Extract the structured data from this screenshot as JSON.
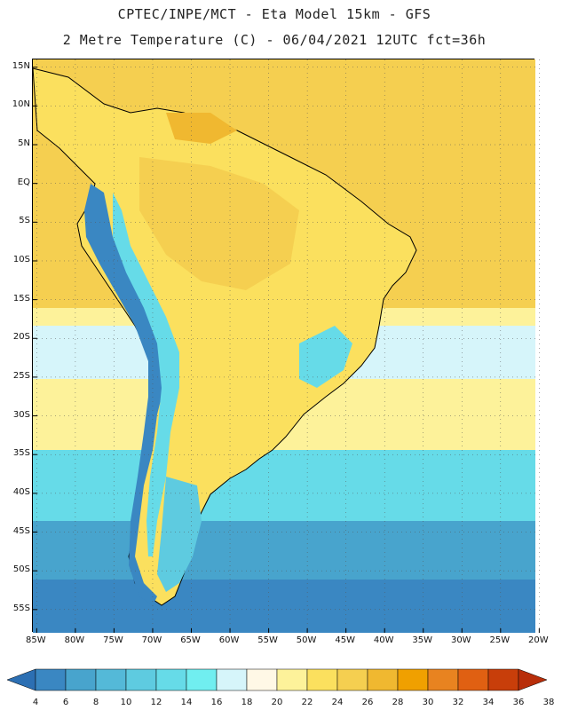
{
  "title_line1": "CPTEC/INPE/MCT -  Eta Model 15km - GFS",
  "title_line2": "2 Metre Temperature (C) - 06/04/2021 12UTC fct=36h",
  "lat_labels": [
    "15N",
    "10N",
    "5N",
    "EQ",
    "5S",
    "10S",
    "15S",
    "20S",
    "25S",
    "30S",
    "35S",
    "40S",
    "45S",
    "50S",
    "55S"
  ],
  "lat_values": [
    15,
    10,
    5,
    0,
    -5,
    -10,
    -15,
    -20,
    -25,
    -30,
    -35,
    -40,
    -45,
    -50,
    -55
  ],
  "lon_labels": [
    "85W",
    "80W",
    "75W",
    "70W",
    "65W",
    "60W",
    "55W",
    "50W",
    "45W",
    "40W",
    "35W",
    "30W",
    "25W",
    "20W"
  ],
  "lon_values": [
    -85,
    -80,
    -75,
    -70,
    -65,
    -60,
    -55,
    -50,
    -45,
    -40,
    -35,
    -30,
    -25,
    -20
  ],
  "map_extent": {
    "lon": [
      -85.5,
      -20.5
    ],
    "lat": [
      -58,
      16
    ]
  },
  "colorbar": {
    "levels": [
      "4",
      "6",
      "8",
      "10",
      "12",
      "14",
      "16",
      "18",
      "20",
      "22",
      "24",
      "26",
      "28",
      "30",
      "32",
      "34",
      "36",
      "38"
    ],
    "colors": [
      "#2c6fb3",
      "#3a87c2",
      "#48a4cd",
      "#54b9d8",
      "#5ecbe0",
      "#66dbe8",
      "#70eef0",
      "#d6f5fa",
      "#fff8e6",
      "#fdf29a",
      "#fbe05e",
      "#f5cf50",
      "#f0b830",
      "#f0a000",
      "#e88320",
      "#e06012",
      "#c83e0a",
      "#b82e0a"
    ],
    "min_arrow_color": "#2c6fb3",
    "max_arrow_color": "#b82e0a"
  },
  "ocean_colors": {
    "tropical": "#f5cf50",
    "subtropical": "#fdf29a",
    "cool": "#d6f5fa",
    "cold": "#66dbe8",
    "colder": "#48a4cd",
    "coldest": "#3a87c2"
  },
  "land_colors": {
    "hot": "#f0b830",
    "warm": "#f5cf50",
    "mild": "#fbe05e",
    "andes_high": "#3a87c2",
    "andes_mid": "#66dbe8",
    "patagonia": "#5ecbe0"
  }
}
